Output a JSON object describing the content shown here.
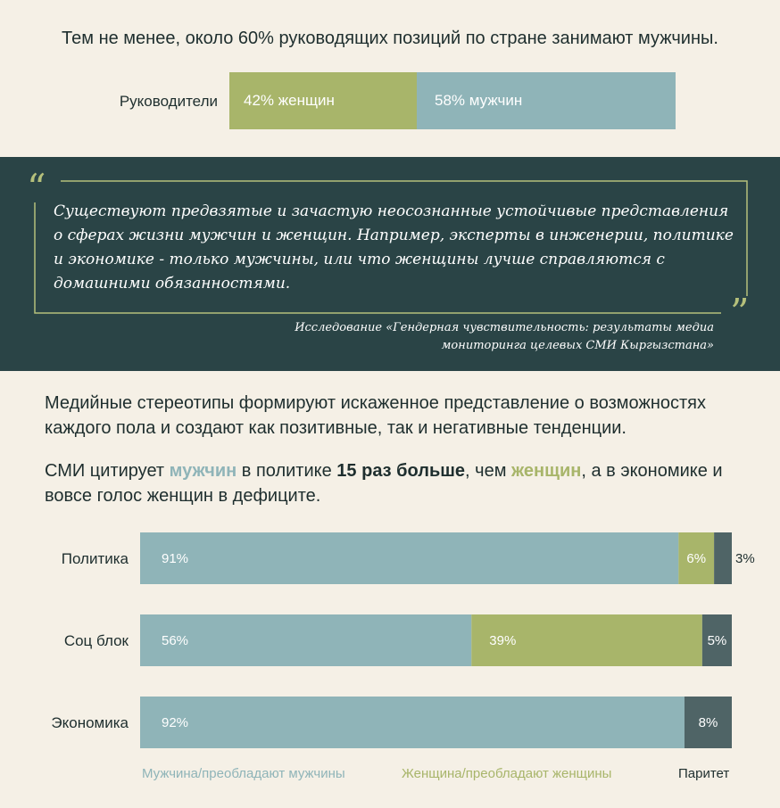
{
  "intro": "Тем не менее, около 60% руководящих позиций по стране занимают мужчины.",
  "leadership": {
    "label": "Руководители",
    "women_label": "42% женщин",
    "men_label": "58% мужчин",
    "women_pct": 42,
    "men_pct": 58
  },
  "quote": {
    "text": "Существуют предвзятые и зачастую неосознанные устойчивые представления о сферах жизни мужчин и женщин. Например, эксперты в инженерии, политике и экономике - только мужчины, или что женщины лучше справляются с домашними обязанностями.",
    "source_line1": "Исследование «Гендерная чувствительность: результаты медиа",
    "source_line2": "мониторинга целевых СМИ Кыргызстана»",
    "open_mark": "“",
    "close_mark": "”"
  },
  "para1": "Медийные стереотипы формируют искаженное представление о возможностях каждого пола и создают как позитивные, так и негативные тенденции.",
  "para2": {
    "p1": "СМИ цитирует ",
    "men": "мужчин",
    "p2": " в политике ",
    "bold": "15 раз больше",
    "p3": ", чем ",
    "women": "женщин",
    "p4": ", а в экономике и вовсе голос женщин в дефиците."
  },
  "colors": {
    "men": "#8fb4b8",
    "women": "#a8b56a",
    "parity": "#4f6466",
    "dark_panel": "#2a4446",
    "background": "#f5f0e6"
  },
  "chart_data": {
    "type": "bar",
    "orientation": "horizontal-stacked",
    "categories": [
      "Политика",
      "Соц блок",
      "Экономика"
    ],
    "series": [
      {
        "name": "Мужчина/преобладают мужчины",
        "values": [
          91,
          56,
          92
        ],
        "labels": [
          "91%",
          "56%",
          "92%"
        ],
        "color": "#8fb4b8"
      },
      {
        "name": "Женщина/преобладают женщины",
        "values": [
          6,
          39,
          0
        ],
        "labels": [
          "6%",
          "39%",
          ""
        ],
        "color": "#a8b56a"
      },
      {
        "name": "Паритет",
        "values": [
          3,
          5,
          8
        ],
        "labels": [
          "3%",
          "5%",
          "8%"
        ],
        "color": "#4f6466"
      }
    ],
    "xlim": [
      0,
      100
    ],
    "legend_position": "bottom"
  }
}
